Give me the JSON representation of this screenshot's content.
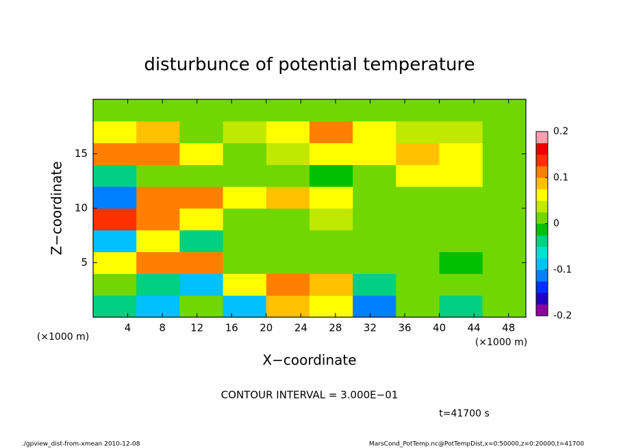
{
  "chart_data": {
    "type": "heatmap",
    "title": "disturbunce of potential temperature",
    "x_label": "X−coordinate",
    "y_label": "Z−coordinate",
    "x_unit_left": "(×1000 m)",
    "x_unit_right": "(×1000 m)",
    "contour_interval": "CONTOUR INTERVAL = 3.000E−01",
    "time_label": "t=41700 s",
    "footer_left": "./gpview_dist-from-xmean  2010-12-08",
    "footer_right": "MarsCond_PotTemp.nc@PotTempDist,x=0:50000,z=0:20000,t=41700",
    "xlim": [
      0,
      50
    ],
    "ylim": [
      0,
      20
    ],
    "xticks": [
      4,
      8,
      12,
      16,
      20,
      24,
      28,
      32,
      36,
      40,
      44,
      48
    ],
    "yticks": [
      5,
      10,
      15
    ],
    "x_bins": [
      0,
      5,
      10,
      15,
      20,
      25,
      30,
      35,
      40,
      45,
      50
    ],
    "y_bins": [
      0,
      2,
      4,
      6,
      8,
      10,
      12,
      14,
      16,
      18,
      20
    ],
    "z": [
      [
        -0.05,
        -0.1,
        0,
        -0.08,
        0.08,
        0.05,
        -0.12,
        0,
        -0.05,
        0
      ],
      [
        0.02,
        -0.05,
        -0.08,
        0.05,
        0.1,
        0.08,
        -0.05,
        0,
        0.02,
        0
      ],
      [
        0.05,
        0.1,
        0.1,
        0.02,
        0,
        0,
        0,
        0,
        -0.02,
        0
      ],
      [
        -0.08,
        0.05,
        -0.05,
        0,
        0,
        0,
        0.01,
        0,
        0,
        0
      ],
      [
        0.15,
        0.1,
        0.05,
        0.02,
        0,
        0.03,
        0.02,
        0,
        0,
        0
      ],
      [
        -0.12,
        0.12,
        0.1,
        0.05,
        0.08,
        0.05,
        0.02,
        0.02,
        0,
        0
      ],
      [
        -0.05,
        0.02,
        0.02,
        0,
        0,
        -0.02,
        0.02,
        0.05,
        0.05,
        0
      ],
      [
        0.12,
        0.1,
        0.05,
        0.02,
        0.03,
        0.05,
        0.05,
        0.08,
        0.05,
        0
      ],
      [
        0.05,
        0.08,
        0.02,
        0.03,
        0.07,
        0.1,
        0.06,
        0.04,
        0.03,
        0.02
      ],
      [
        0,
        0,
        0,
        0,
        0,
        0,
        0,
        0,
        0,
        0
      ]
    ],
    "colorbar_lim": [
      -0.2,
      0.2
    ],
    "colorbar_ticks": [
      -0.2,
      -0.1,
      0,
      0.1,
      0.2
    ],
    "colorbar_colors": [
      "#8a00a0",
      "#2000c0",
      "#0030ff",
      "#0080ff",
      "#00c0ff",
      "#00e0d0",
      "#00d080",
      "#00c000",
      "#70d800",
      "#c0e800",
      "#ffff00",
      "#ffc000",
      "#ff8000",
      "#ff3000",
      "#e80000",
      "#ffa0b0"
    ]
  }
}
